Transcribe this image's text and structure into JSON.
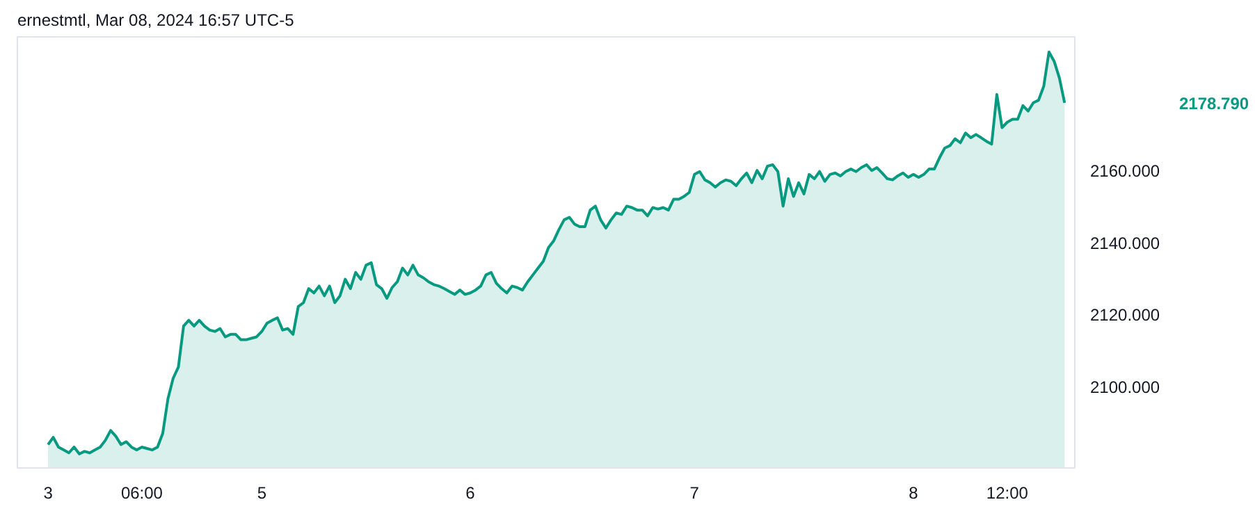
{
  "chart_data": {
    "type": "area",
    "title": "ernestmtl, Mar 08, 2024 16:57 UTC-5",
    "categories": [
      "3",
      null,
      null,
      null,
      null,
      null,
      null,
      null,
      null,
      null,
      null,
      null,
      null,
      null,
      null,
      null,
      null,
      null,
      "06:00",
      null,
      null,
      null,
      null,
      null,
      null,
      null,
      null,
      null,
      null,
      null,
      null,
      null,
      null,
      null,
      null,
      null,
      null,
      null,
      null,
      null,
      null,
      "5",
      null,
      null,
      null,
      null,
      null,
      null,
      null,
      null,
      null,
      null,
      null,
      null,
      null,
      null,
      null,
      null,
      null,
      null,
      null,
      null,
      null,
      null,
      null,
      null,
      null,
      null,
      null,
      null,
      null,
      null,
      null,
      null,
      null,
      null,
      null,
      null,
      null,
      null,
      null,
      "6",
      null,
      null,
      null,
      null,
      null,
      null,
      null,
      null,
      null,
      null,
      null,
      null,
      null,
      null,
      null,
      null,
      null,
      null,
      null,
      null,
      null,
      null,
      null,
      null,
      null,
      null,
      null,
      null,
      null,
      null,
      null,
      null,
      null,
      null,
      null,
      null,
      null,
      null,
      null,
      null,
      null,
      null,
      "7",
      null,
      null,
      null,
      null,
      null,
      null,
      null,
      null,
      null,
      null,
      null,
      null,
      null,
      null,
      null,
      null,
      null,
      null,
      null,
      null,
      null,
      null,
      null,
      null,
      null,
      null,
      null,
      null,
      null,
      null,
      null,
      null,
      null,
      null,
      null,
      null,
      null,
      null,
      null,
      null,
      null,
      "8",
      null,
      null,
      null,
      null,
      null,
      null,
      null,
      null,
      null,
      null,
      null,
      null,
      null,
      null,
      null,
      null,
      null,
      "12:00",
      null,
      null,
      null,
      null,
      null,
      null,
      null,
      null,
      null,
      null,
      null
    ],
    "series": [
      {
        "color": "#089981",
        "values": [
          2083.9,
          2085.9,
          2083.2,
          2082.4,
          2081.6,
          2083.2,
          2081.3,
          2082.0,
          2081.6,
          2082.4,
          2083.2,
          2085.1,
          2087.8,
          2086.2,
          2083.9,
          2084.7,
          2083.2,
          2082.4,
          2083.2,
          2082.8,
          2082.4,
          2083.2,
          2087.0,
          2096.6,
          2102.3,
          2105.4,
          2116.8,
          2118.4,
          2116.8,
          2118.4,
          2116.8,
          2115.7,
          2115.3,
          2116.1,
          2113.8,
          2114.5,
          2114.5,
          2113.0,
          2113.0,
          2113.4,
          2113.8,
          2115.3,
          2117.6,
          2118.4,
          2119.1,
          2115.7,
          2116.1,
          2114.5,
          2122.2,
          2123.3,
          2127.2,
          2126.0,
          2127.9,
          2125.2,
          2127.9,
          2123.3,
          2125.2,
          2129.8,
          2127.2,
          2131.7,
          2129.8,
          2133.7,
          2134.4,
          2128.3,
          2127.2,
          2124.5,
          2127.5,
          2129.1,
          2132.9,
          2131.0,
          2133.7,
          2131.0,
          2130.2,
          2129.1,
          2128.3,
          2127.9,
          2127.2,
          2126.4,
          2125.6,
          2126.8,
          2125.6,
          2126.0,
          2126.8,
          2127.9,
          2131.0,
          2131.7,
          2128.7,
          2127.2,
          2126.0,
          2127.9,
          2127.5,
          2126.8,
          2129.1,
          2131.0,
          2132.9,
          2134.8,
          2138.6,
          2140.5,
          2143.6,
          2146.3,
          2147.0,
          2145.1,
          2144.4,
          2144.4,
          2149.0,
          2150.1,
          2146.3,
          2144.0,
          2146.3,
          2148.2,
          2147.8,
          2150.1,
          2149.7,
          2149.0,
          2149.0,
          2147.4,
          2149.7,
          2149.3,
          2149.7,
          2149.0,
          2152.0,
          2152.0,
          2152.8,
          2153.9,
          2158.9,
          2159.7,
          2157.4,
          2156.6,
          2155.4,
          2156.6,
          2157.4,
          2157.0,
          2155.8,
          2157.7,
          2159.3,
          2156.6,
          2160.0,
          2157.7,
          2161.2,
          2161.6,
          2159.7,
          2150.1,
          2157.7,
          2152.8,
          2156.6,
          2153.5,
          2158.9,
          2157.7,
          2159.7,
          2157.0,
          2158.9,
          2159.3,
          2158.5,
          2159.7,
          2160.4,
          2159.7,
          2160.8,
          2161.6,
          2160.0,
          2160.8,
          2159.3,
          2157.7,
          2157.4,
          2158.5,
          2159.3,
          2158.1,
          2158.9,
          2158.1,
          2158.9,
          2160.4,
          2160.4,
          2163.5,
          2166.2,
          2166.9,
          2168.8,
          2167.7,
          2170.4,
          2169.1,
          2170.0,
          2169.1,
          2168.1,
          2167.3,
          2181.1,
          2171.9,
          2173.4,
          2174.2,
          2174.2,
          2178.0,
          2176.5,
          2178.8,
          2179.5,
          2183.4,
          2192.9,
          2190.3,
          2185.7,
          2178.8
        ]
      }
    ],
    "ylim": [
      2077.4,
      2197.1
    ],
    "yticks": [
      {
        "value": 2100,
        "label": "2100.000"
      },
      {
        "value": 2120,
        "label": "2120.000"
      },
      {
        "value": 2140,
        "label": "2140.000"
      },
      {
        "value": 2160,
        "label": "2160.000"
      }
    ],
    "annotations": [
      "2178.790"
    ],
    "grid": false
  }
}
